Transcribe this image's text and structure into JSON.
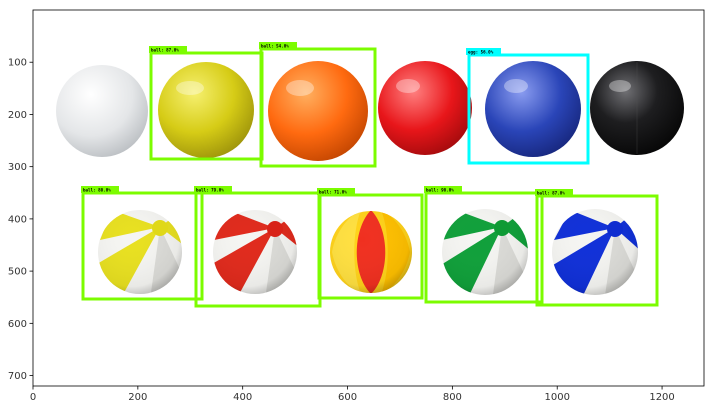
{
  "figure": {
    "x_axis": {
      "range": [
        0,
        1280
      ],
      "ticks": [
        "0",
        "200",
        "400",
        "600",
        "800",
        "1000",
        "1200"
      ]
    },
    "y_axis": {
      "range": [
        720,
        0
      ],
      "ticks": [
        "100",
        "200",
        "300",
        "400",
        "500",
        "600",
        "700"
      ]
    }
  },
  "detections": [
    {
      "label": "ball: 87.0%",
      "class": "ball",
      "color": "#7cfc00"
    },
    {
      "label": "ball: 54.0%",
      "class": "ball",
      "color": "#7cfc00"
    },
    {
      "label": "egg: 56.0%",
      "class": "egg",
      "color": "#00ffff"
    },
    {
      "label": "ball: 80.0%",
      "class": "ball",
      "color": "#7cfc00"
    },
    {
      "label": "ball: 79.0%",
      "class": "ball",
      "color": "#7cfc00"
    },
    {
      "label": "ball: 71.0%",
      "class": "ball",
      "color": "#7cfc00"
    },
    {
      "label": "ball: 90.0%",
      "class": "ball",
      "color": "#7cfc00"
    },
    {
      "label": "ball: 87.0%",
      "class": "ball",
      "color": "#7cfc00"
    }
  ],
  "scene_objects": [
    {
      "name": "white-ball",
      "color": "#e6e8ea"
    },
    {
      "name": "yellow-ball",
      "color": "#d9cf1f"
    },
    {
      "name": "orange-ball",
      "color": "#ff6a10"
    },
    {
      "name": "red-ball",
      "color": "#e8161a"
    },
    {
      "name": "blue-ball",
      "color": "#2a45b8"
    },
    {
      "name": "black-ball",
      "color": "#1a1a1c"
    },
    {
      "name": "beach-ball-yellow",
      "color": "#e8e020"
    },
    {
      "name": "beach-ball-red",
      "color": "#e02a1c"
    },
    {
      "name": "beach-ball-red-yellow",
      "color": "#f03020"
    },
    {
      "name": "beach-ball-green",
      "color": "#10a03a"
    },
    {
      "name": "beach-ball-blue",
      "color": "#1030d8"
    }
  ]
}
